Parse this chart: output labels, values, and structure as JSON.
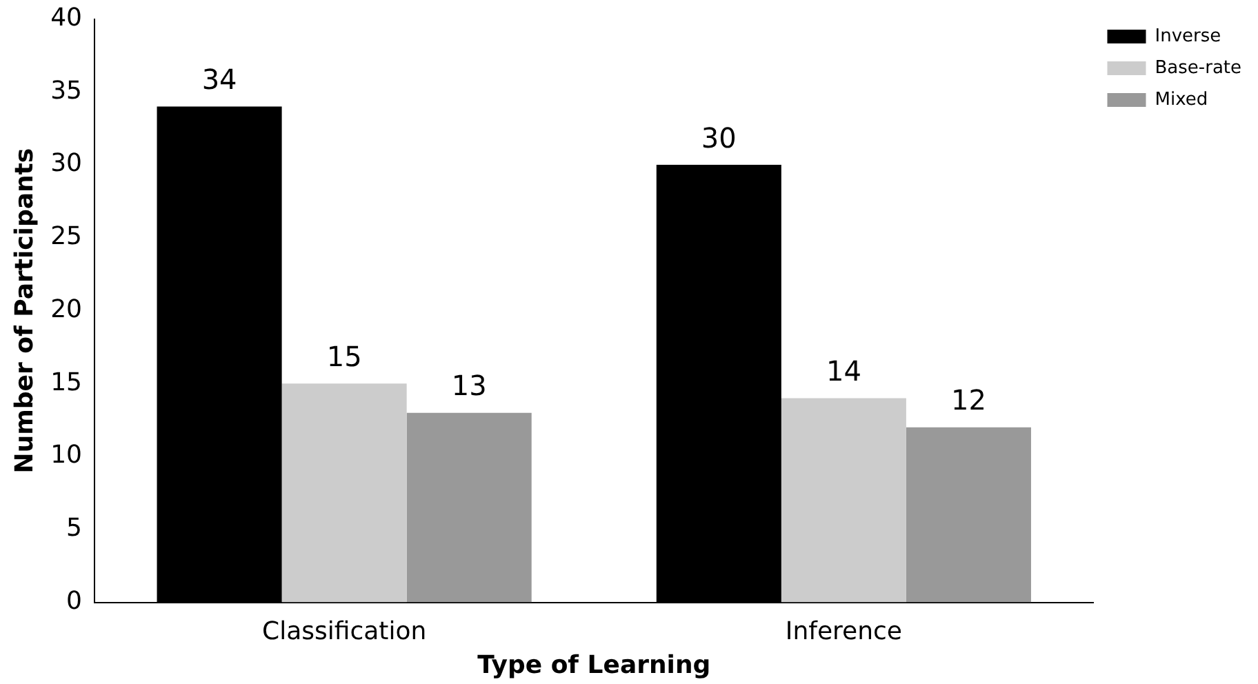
{
  "chart_data": {
    "type": "bar",
    "xlabel": "Type of Learning",
    "ylabel": "Number of Participants",
    "categories": [
      "Classification",
      "Inference"
    ],
    "series": [
      {
        "name": "Inverse",
        "color": "#000000",
        "values": [
          34,
          30
        ]
      },
      {
        "name": "Base-rate",
        "color": "#cccccc",
        "values": [
          15,
          14
        ]
      },
      {
        "name": "Mixed",
        "color": "#999999",
        "values": [
          13,
          12
        ]
      }
    ],
    "ylim": [
      0,
      40
    ],
    "yticks": [
      0,
      5,
      10,
      15,
      20,
      25,
      30,
      35,
      40
    ],
    "grid": false,
    "legend": "top right",
    "data_labels": true
  }
}
